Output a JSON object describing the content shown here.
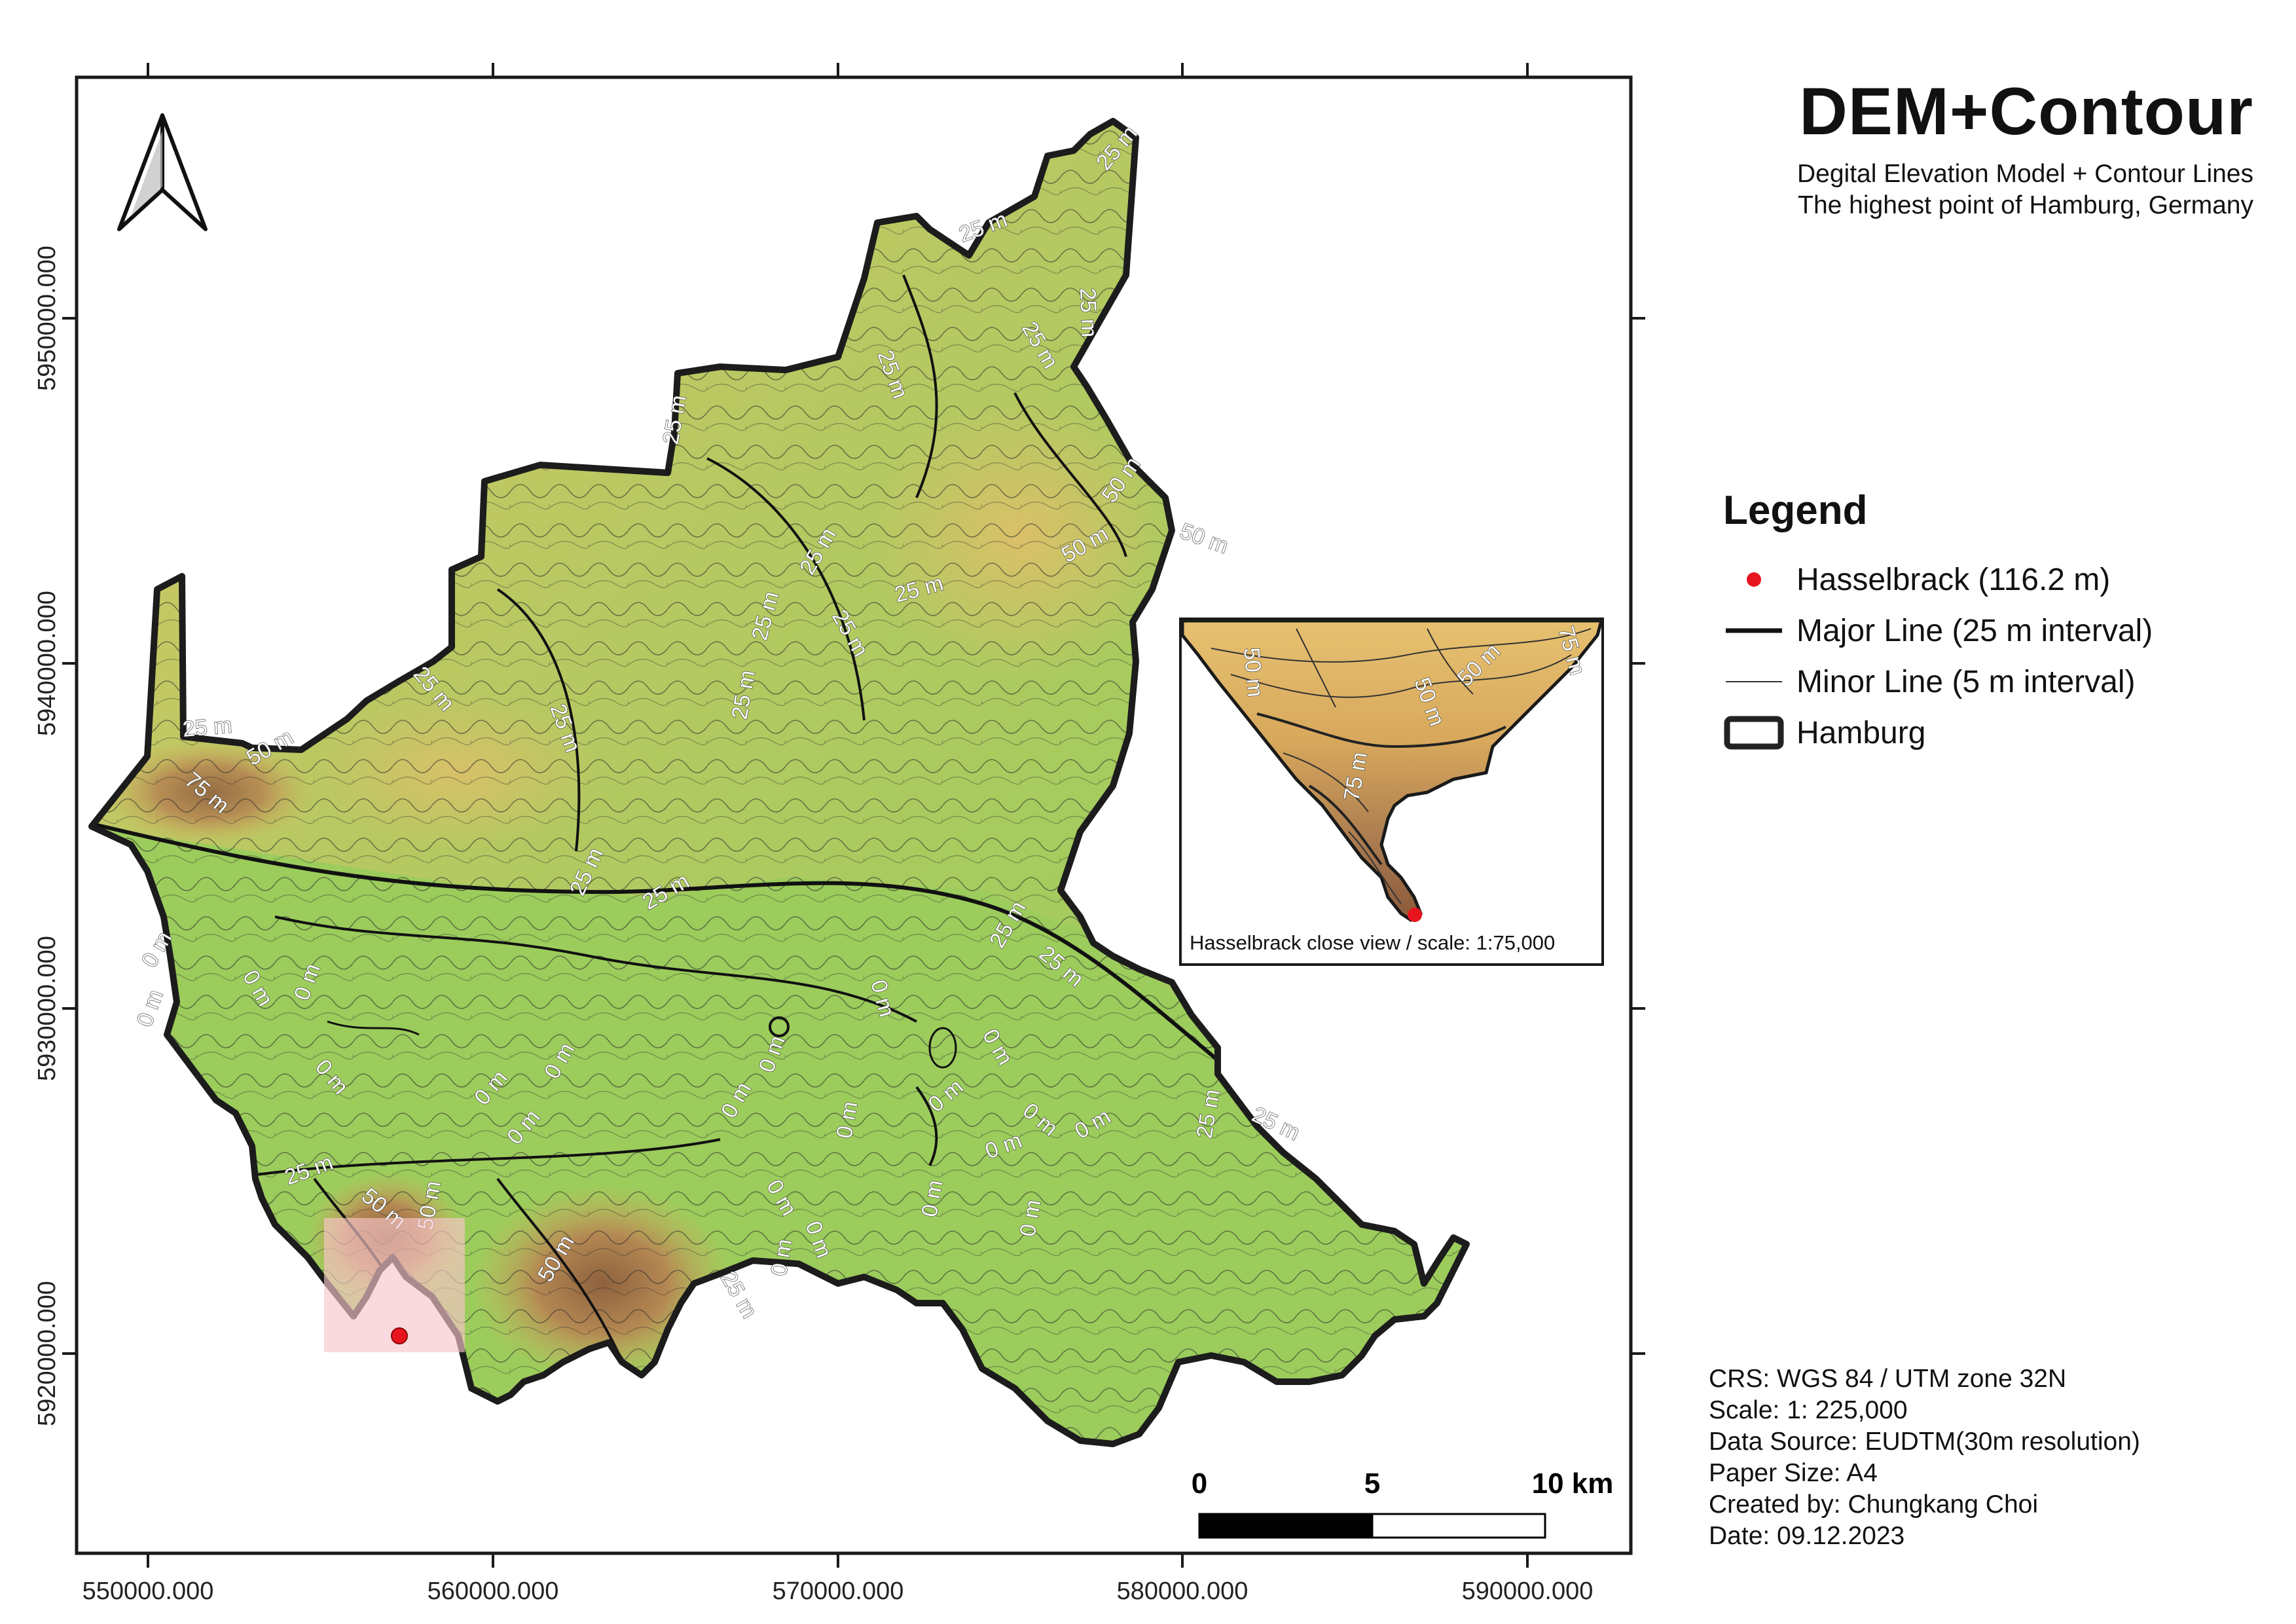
{
  "title": "DEM+Contour",
  "subtitle_lines": [
    "Degital Elevation Model + Contour Lines",
    "The highest point of Hamburg, Germany"
  ],
  "legend": {
    "title": "Legend",
    "items": [
      {
        "label": "Hasselbrack (116.2 m)",
        "symbol": "red-point-icon",
        "color": "#e8141e"
      },
      {
        "label": "Major Line (25 m interval)",
        "symbol": "thick-line-icon",
        "color": "#111111"
      },
      {
        "label": "Minor Line (5 m interval)",
        "symbol": "thin-line-icon",
        "color": "#333333"
      },
      {
        "label": "Hamburg",
        "symbol": "boundary-box-icon",
        "color": "#222222"
      }
    ]
  },
  "metadata": [
    "CRS: WGS 84 / UTM zone 32N",
    "Scale: 1: 225,000",
    "Data Source: EUDTM(30m resolution)",
    "Paper Size: A4",
    "Created by: Chungkang Choi",
    "Date: 09.12.2023"
  ],
  "axes": {
    "x_ticks": [
      "550000.000",
      "560000.000",
      "570000.000",
      "580000.000",
      "590000.000"
    ],
    "y_ticks": [
      "5950000.000",
      "5940000.000",
      "5930000.000",
      "5920000.000"
    ]
  },
  "inset": {
    "caption": "Hasselbrack close view / scale: 1:75,000"
  },
  "scalebar": {
    "labels": [
      "0",
      "5",
      "10 km"
    ]
  },
  "colors": {
    "lowland": "#9ccc5c",
    "mid": "#c9c760",
    "high": "#e5c06a",
    "peak": "#a97a4f",
    "boundary": "#1c1c1c",
    "highlight_box": "#f7c6c9",
    "point": "#e8141e"
  },
  "contour_labels": [
    "25 m",
    "50 m",
    "75 m",
    "0 m"
  ]
}
